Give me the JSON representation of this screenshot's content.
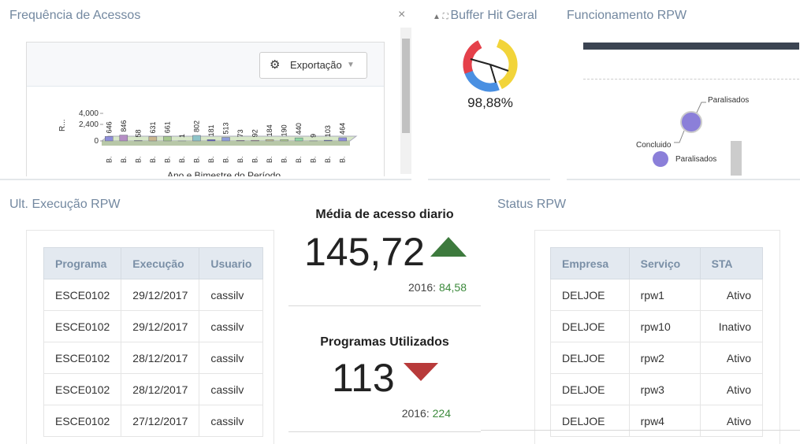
{
  "panels": {
    "frequencia": {
      "title": "Frequência de Acessos",
      "close": "×",
      "export": "Exportação",
      "chart": {
        "type": "bar",
        "y_label": "R...",
        "x_label": "Ano e Bimestre do Período",
        "categories": [
          "B.",
          "B.",
          "B.",
          "B.",
          "B.",
          "B.",
          "B.",
          "B.",
          "B.",
          "B.",
          "B.",
          "B.",
          "B.",
          "B.",
          "B.",
          "B.",
          "B."
        ],
        "values": [
          646,
          846,
          58,
          631,
          661,
          1,
          802,
          181,
          513,
          73,
          92,
          184,
          190,
          440,
          9,
          103,
          464
        ],
        "colors": [
          "#8e8edb",
          "#b58ec4",
          "#d98b8b",
          "#c9b68e",
          "#a7c98e",
          "#8ec9a3",
          "#8ec4c9",
          "#5a5ac4",
          "#8e9edb",
          "#c48eb5",
          "#d9a3a3",
          "#c9c48e",
          "#b5d98e",
          "#8ed9a3",
          "#8eb5c9",
          "#5a6ac4",
          "#8e8edb"
        ],
        "ylim": [
          0,
          4000
        ],
        "yticks": [
          0,
          {
            "value": 2400,
            "label": "2,400"
          },
          {
            "value": 4000,
            "label": "4,000"
          }
        ]
      }
    },
    "buffer": {
      "title": "Buffer Hit Geral",
      "value": "98,88%"
    },
    "funcionamento": {
      "title": "Funcionamento RPW",
      "labels": [
        "Paralisados",
        "Concluido",
        "Paralisados"
      ]
    },
    "ult_execucao": {
      "title": "Ult. Execução RPW",
      "table": {
        "header": [
          "Programa",
          "Execução",
          "Usuario"
        ],
        "rows": [
          [
            "ESCE0102",
            "29/12/2017",
            "cassilv"
          ],
          [
            "ESCE0102",
            "29/12/2017",
            "cassilv"
          ],
          [
            "ESCE0102",
            "28/12/2017",
            "cassilv"
          ],
          [
            "ESCE0102",
            "28/12/2017",
            "cassilv"
          ],
          [
            "ESCE0102",
            "27/12/2017",
            "cassilv"
          ]
        ]
      }
    },
    "media": {
      "title": "Média de acesso diario",
      "value": "145,72",
      "prev_label": "2016:",
      "prev_value": "84,58"
    },
    "programas": {
      "title": "Programas Utilizados",
      "value": "113",
      "prev_label": "2016:",
      "prev_value": "224"
    },
    "status": {
      "title": "Status RPW",
      "table": {
        "header": [
          "Empresa",
          "Serviço",
          "STA"
        ],
        "rows": [
          [
            "DELJOE",
            "rpw1",
            "Ativo"
          ],
          [
            "DELJOE",
            "rpw10",
            "Inativo"
          ],
          [
            "DELJOE",
            "rpw2",
            "Ativo"
          ],
          [
            "DELJOE",
            "rpw3",
            "Ativo"
          ],
          [
            "DELJOE",
            "rpw4",
            "Ativo"
          ]
        ]
      }
    }
  }
}
